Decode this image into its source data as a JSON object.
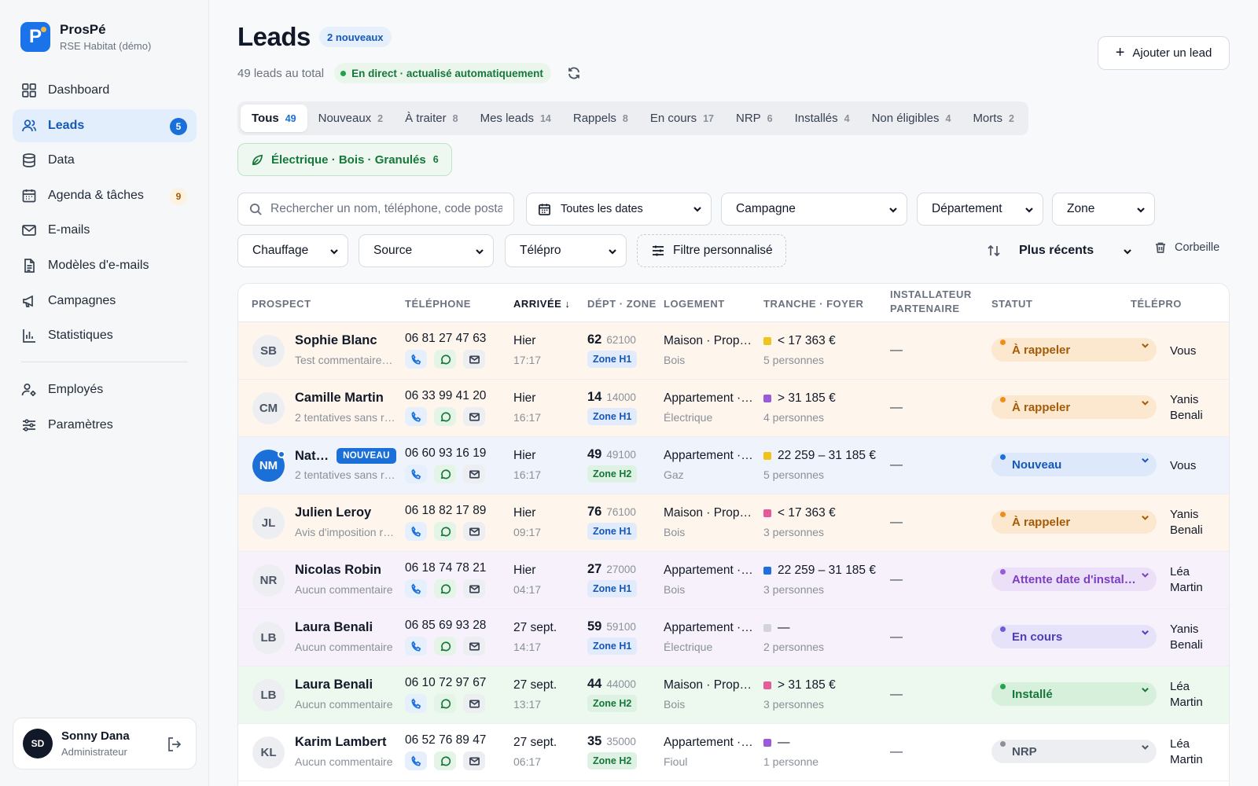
{
  "brand": {
    "logo_letter": "P",
    "name": "ProsPé",
    "subtitle": "RSE Habitat (démo)"
  },
  "nav": {
    "items": [
      {
        "label": "Dashboard",
        "icon": "dashboard-icon"
      },
      {
        "label": "Leads",
        "icon": "users-icon",
        "badge": "5",
        "active": true
      },
      {
        "label": "Data",
        "icon": "database-icon"
      },
      {
        "label": "Agenda & tâches",
        "icon": "calendar-icon",
        "badge": "9"
      },
      {
        "label": "E-mails",
        "icon": "mail-icon"
      },
      {
        "label": "Modèles d'e-mails",
        "icon": "document-icon"
      },
      {
        "label": "Campagnes",
        "icon": "megaphone-icon"
      },
      {
        "label": "Statistiques",
        "icon": "bar-chart-icon"
      },
      {
        "label": "Employés",
        "icon": "user-gear-icon"
      },
      {
        "label": "Paramètres",
        "icon": "sliders-icon"
      }
    ]
  },
  "user": {
    "initials": "SD",
    "name": "Sonny Dana",
    "role": "Administrateur"
  },
  "header": {
    "title": "Leads",
    "new_badge": "2 nouveaux",
    "total": "49 leads au total",
    "live": "En direct · actualisé automatiquement",
    "add_button": "Ajouter un lead"
  },
  "tabs": [
    {
      "label": "Tous",
      "count": "49",
      "active": true
    },
    {
      "label": "Nouveaux",
      "count": "2"
    },
    {
      "label": "À traiter",
      "count": "8"
    },
    {
      "label": "Mes leads",
      "count": "14"
    },
    {
      "label": "Rappels",
      "count": "8"
    },
    {
      "label": "En cours",
      "count": "17"
    },
    {
      "label": "NRP",
      "count": "6"
    },
    {
      "label": "Installés",
      "count": "4"
    },
    {
      "label": "Non éligibles",
      "count": "4"
    },
    {
      "label": "Morts",
      "count": "2"
    }
  ],
  "energy_filter": {
    "label": "Électrique · Bois · Granulés",
    "count": "6"
  },
  "filters": {
    "search_placeholder": "Rechercher un nom, téléphone, code postal…",
    "dates": "Toutes les dates",
    "campagne": "Campagne",
    "departement": "Département",
    "zone": "Zone",
    "chauffage": "Chauffage",
    "source": "Source",
    "telepro": "Télépro",
    "custom": "Filtre personnalisé",
    "sort": "Plus récents",
    "trash": "Corbeille"
  },
  "columns": {
    "prospect": "PROSPECT",
    "telephone": "TÉLÉPHONE",
    "arrivee": "ARRIVÉE ↓",
    "dept_zone": "DÉPT · ZONE",
    "logement": "LOGEMENT",
    "tranche": "TRANCHE · FOYER",
    "installateur_1": "INSTALLATEUR",
    "installateur_2": "PARTENAIRE",
    "statut": "STATUT",
    "telepro": "TÉLÉPRO"
  },
  "colors": {
    "accent": "#1a6fd8",
    "tranche_yellow": "#f2c21b",
    "tranche_purple": "#9a5bd9",
    "tranche_pink": "#e65a9a",
    "tranche_blue": "#1f6fe0",
    "tranche_gray": "#d1d5db"
  },
  "rows": [
    {
      "initials": "SB",
      "name": "Sophie Blanc",
      "comment": "Test commentaire …",
      "phone": "06 81 27 47 63",
      "date": "Hier",
      "time": "17:17",
      "dept": "62",
      "cp": "62100",
      "zone": "Zone H1",
      "logement": "Maison · Prop…",
      "chauffage": "Bois",
      "tranche": "< 17 363 €",
      "tranche_color": "#f2c21b",
      "foyer": "5 personnes",
      "installateur": "—",
      "statut": "À rappeler",
      "telepro": "Vous"
    },
    {
      "initials": "CM",
      "name": "Camille Martin",
      "comment": "2 tentatives sans r…",
      "phone": "06 33 99 41 20",
      "date": "Hier",
      "time": "16:17",
      "dept": "14",
      "cp": "14000",
      "zone": "Zone H1",
      "logement": "Appartement ·…",
      "chauffage": "Électrique",
      "tranche": "> 31 185 €",
      "tranche_color": "#9a5bd9",
      "foyer": "4 personnes",
      "installateur": "—",
      "statut": "À rappeler",
      "telepro": "Yanis Benali"
    },
    {
      "initials": "NM",
      "name": "Nat…",
      "new_tag": "NOUVEAU",
      "comment": "2 tentatives sans r…",
      "phone": "06 60 93 16 19",
      "date": "Hier",
      "time": "16:17",
      "dept": "49",
      "cp": "49100",
      "zone": "Zone H2",
      "logement": "Appartement ·…",
      "chauffage": "Gaz",
      "tranche": "22 259 – 31 185 €",
      "tranche_color": "#f2c21b",
      "foyer": "5 personnes",
      "installateur": "—",
      "statut": "Nouveau",
      "telepro": "Vous"
    },
    {
      "initials": "JL",
      "name": "Julien Leroy",
      "comment": "Avis d'imposition r…",
      "phone": "06 18 82 17 89",
      "date": "Hier",
      "time": "09:17",
      "dept": "76",
      "cp": "76100",
      "zone": "Zone H1",
      "logement": "Maison · Prop…",
      "chauffage": "Bois",
      "tranche": "< 17 363 €",
      "tranche_color": "#e65a9a",
      "foyer": "3 personnes",
      "installateur": "—",
      "statut": "À rappeler",
      "telepro": "Yanis Benali"
    },
    {
      "initials": "NR",
      "name": "Nicolas Robin",
      "comment": "Aucun commentaire",
      "phone": "06 18 74 78 21",
      "date": "Hier",
      "time": "04:17",
      "dept": "27",
      "cp": "27000",
      "zone": "Zone H1",
      "logement": "Appartement ·…",
      "chauffage": "Bois",
      "tranche": "22 259 – 31 185 €",
      "tranche_color": "#1f6fe0",
      "foyer": "3 personnes",
      "installateur": "—",
      "statut": "Attente date d'install…",
      "telepro": "Léa Martin"
    },
    {
      "initials": "LB",
      "name": "Laura Benali",
      "comment": "Aucun commentaire",
      "phone": "06 85 69 93 28",
      "date": "27 sept.",
      "time": "14:17",
      "dept": "59",
      "cp": "59100",
      "zone": "Zone H1",
      "logement": "Appartement ·…",
      "chauffage": "Électrique",
      "tranche": "—",
      "tranche_color": "#d1d5db",
      "foyer": "2 personnes",
      "installateur": "—",
      "statut": "En cours",
      "telepro": "Yanis Benali"
    },
    {
      "initials": "LB",
      "name": "Laura Benali",
      "comment": "Aucun commentaire",
      "phone": "06 10 72 97 67",
      "date": "27 sept.",
      "time": "13:17",
      "dept": "44",
      "cp": "44000",
      "zone": "Zone H2",
      "logement": "Maison · Prop…",
      "chauffage": "Bois",
      "tranche": "> 31 185 €",
      "tranche_color": "#e65a9a",
      "foyer": "3 personnes",
      "installateur": "—",
      "statut": "Installé",
      "telepro": "Léa Martin"
    },
    {
      "initials": "KL",
      "name": "Karim Lambert",
      "comment": "Aucun commentaire",
      "phone": "06 52 76 89 47",
      "date": "27 sept.",
      "time": "06:17",
      "dept": "35",
      "cp": "35000",
      "zone": "Zone H2",
      "logement": "Appartement ·…",
      "chauffage": "Fioul",
      "tranche": "—",
      "tranche_color": "#9a5bd9",
      "foyer": "1 personne",
      "installateur": "—",
      "statut": "NRP",
      "telepro": "Léa Martin"
    }
  ]
}
